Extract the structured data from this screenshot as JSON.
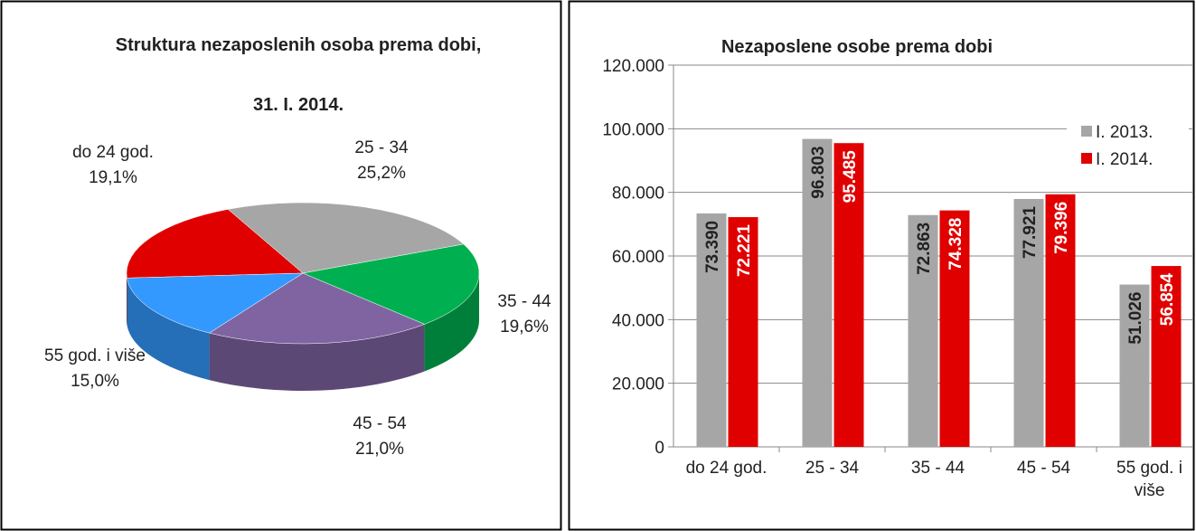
{
  "chart_data": [
    {
      "type": "pie",
      "title": [
        "Struktura nezaposlenih osoba prema dobi,",
        "31. I. 2014."
      ],
      "categories": [
        "do 24 god.",
        "25 - 34",
        "35 - 44",
        "45 - 54",
        "55 god. i više"
      ],
      "values": [
        19.1,
        25.2,
        19.6,
        21.0,
        15.0
      ],
      "value_labels": [
        "19,1%",
        "25,2%",
        "19,6%",
        "21,0%",
        "15,0%"
      ],
      "colors": [
        "#e00000",
        "#a6a6a6",
        "#00b050",
        "#8064a2",
        "#3399ff"
      ]
    },
    {
      "type": "bar",
      "title": "Nezaposlene osobe prema dobi",
      "categories": [
        "do 24 god.",
        "25 - 34",
        "35 - 44",
        "45 - 54",
        "55 god. i više"
      ],
      "series": [
        {
          "name": "I. 2013.",
          "color": "#a6a6a6",
          "values": [
            73390,
            96803,
            72863,
            77921,
            51026
          ],
          "value_labels": [
            "73.390",
            "96.803",
            "72.863",
            "77.921",
            "51.026"
          ]
        },
        {
          "name": "I. 2014.",
          "color": "#e00000",
          "values": [
            72221,
            95485,
            74328,
            79396,
            56854
          ],
          "value_labels": [
            "72.221",
            "95.485",
            "74.328",
            "79.396",
            "56.854"
          ]
        }
      ],
      "ylim": [
        0,
        120000
      ],
      "yticks": [
        0,
        {
          "value": 20000,
          "label": "20.000"
        },
        {
          "value": 40000,
          "label": "40.000"
        },
        {
          "value": 60000,
          "label": "60.000"
        },
        {
          "value": 80000,
          "label": "80.000"
        },
        {
          "value": 100000,
          "label": "100.000"
        },
        {
          "value": 120000,
          "label": "120.000"
        }
      ],
      "grid": true,
      "legend": "right"
    }
  ]
}
